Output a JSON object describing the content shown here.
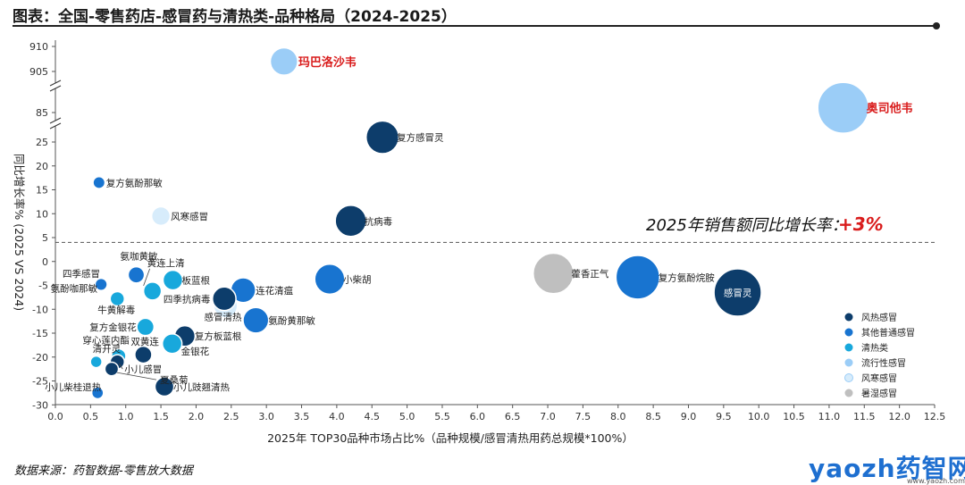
{
  "title": "图表：全国-零售药店-感冒药与清热类-品种格局（2024-2025）",
  "source": "数据来源：药智数据-零售放大数据",
  "logo": {
    "brand": "yaozh药智网",
    "url": "www.yaozh.com"
  },
  "annotation": {
    "text": "2025年销售额同比增长率：",
    "value": "+3%",
    "value_color": "#d91c1c"
  },
  "chart_data": {
    "type": "scatter",
    "bubble": true,
    "xlabel": "2025年 TOP30品种市场占比%（品种规模/感冒清热用药总规模*100%）",
    "ylabel": "同比增长率% (2025 VS 2024)",
    "xlim": [
      0,
      12.5
    ],
    "x_ticks": [
      0.0,
      0.5,
      1.0,
      1.5,
      2.0,
      2.5,
      3.0,
      3.5,
      4.0,
      4.5,
      5.0,
      5.5,
      6.0,
      6.5,
      7.0,
      7.5,
      8.0,
      8.5,
      9.0,
      9.5,
      10.0,
      10.5,
      11.0,
      11.5,
      12.0,
      12.5
    ],
    "x_tick_labels": [
      "0.0",
      "0.5",
      "1.0",
      "1.5",
      "2.0",
      "2.5",
      "3.0",
      "3.5",
      "4.0",
      "4.5",
      "5.0",
      "5.5",
      "6.0",
      "6.5",
      "7.0",
      "7.5",
      "8.0",
      "8.5",
      "9.0",
      "9.5",
      "10.0",
      "10.5",
      "11.0",
      "11.5",
      "12.0",
      "12.5"
    ],
    "y_axis_broken": true,
    "y_tick_labels": [
      "910",
      "905",
      "85",
      "25",
      "20",
      "15",
      "10",
      "5",
      "0",
      "-5",
      "-10",
      "-15",
      "-20",
      "-25",
      "-30"
    ],
    "reference_line": {
      "y": 4,
      "style": "dashed"
    },
    "grid": false,
    "legend_position": "bottom-right",
    "categories": [
      {
        "name": "风热感冒",
        "color": "#0d3d6b"
      },
      {
        "name": "其他普通感冒",
        "color": "#1874d0"
      },
      {
        "name": "清热类",
        "color": "#18a8dc"
      },
      {
        "name": "流行性感冒",
        "color": "#9bcdf7"
      },
      {
        "name": "风寒感冒",
        "color": "#d7ecfb"
      },
      {
        "name": "暑湿感冒",
        "color": "#bfbfbf"
      }
    ],
    "points": [
      {
        "label": "玛巴洛沙韦",
        "x": 3.25,
        "y": 907,
        "size": 3.25,
        "category": "流行性感冒",
        "highlight": true
      },
      {
        "label": "奥司他韦",
        "x": 11.2,
        "y": 86,
        "size": 11.2,
        "category": "流行性感冒",
        "highlight": true
      },
      {
        "label": "复方感冒灵",
        "x": 4.65,
        "y": 26,
        "size": 4.65,
        "category": "风热感冒"
      },
      {
        "label": "复方氨酚那敏",
        "x": 0.62,
        "y": 16.5,
        "size": 0.62,
        "category": "其他普通感冒"
      },
      {
        "label": "风寒感冒",
        "x": 1.5,
        "y": 9.5,
        "size": 1.5,
        "category": "风寒感冒"
      },
      {
        "label": "抗病毒",
        "x": 4.2,
        "y": 8.5,
        "size": 4.2,
        "category": "风热感冒"
      },
      {
        "label": "藿香正气",
        "x": 7.08,
        "y": -2.5,
        "size": 7.08,
        "category": "暑湿感冒"
      },
      {
        "label": "复方氨酚烷胺",
        "x": 8.28,
        "y": -3.3,
        "size": 8.28,
        "category": "其他普通感冒"
      },
      {
        "label": "感冒灵",
        "x": 9.7,
        "y": -6.5,
        "size": 9.7,
        "category": "风热感冒"
      },
      {
        "label": "小柴胡",
        "x": 3.9,
        "y": -3.7,
        "size": 3.9,
        "category": "其他普通感冒"
      },
      {
        "label": "四季感冒",
        "x": 0.66,
        "y": -4.7,
        "size": 0.66,
        "category": "风寒感冒"
      },
      {
        "label": "氨咖黄敏",
        "x": 1.15,
        "y": -2.8,
        "size": 1.15,
        "category": "其他普通感冒"
      },
      {
        "label": "黄连上清",
        "x": 1.38,
        "y": -6.2,
        "size": 1.38,
        "category": "清热类"
      },
      {
        "label": "板蓝根",
        "x": 1.67,
        "y": -3.9,
        "size": 1.67,
        "category": "清热类"
      },
      {
        "label": "连花清瘟",
        "x": 2.67,
        "y": -6.0,
        "size": 2.67,
        "category": "其他普通感冒"
      },
      {
        "label": "四季抗病毒",
        "x": 2.4,
        "y": -7.8,
        "size": 2.4,
        "category": "风热感冒"
      },
      {
        "label": "感冒清热",
        "x": 2.42,
        "y": -9.3,
        "size": 2.42,
        "category": "风寒感冒"
      },
      {
        "label": "氨酚咖那敏",
        "x": 0.65,
        "y": -4.8,
        "size": 0.65,
        "category": "其他普通感冒"
      },
      {
        "label": "牛黄解毒",
        "x": 0.88,
        "y": -7.8,
        "size": 0.88,
        "category": "清热类"
      },
      {
        "label": "氨酚黄那敏",
        "x": 2.85,
        "y": -12.3,
        "size": 2.85,
        "category": "其他普通感冒"
      },
      {
        "label": "复方金银花",
        "x": 1.28,
        "y": -13.7,
        "size": 1.28,
        "category": "清热类"
      },
      {
        "label": "复方板蓝根",
        "x": 1.84,
        "y": -15.6,
        "size": 1.84,
        "category": "风热感冒"
      },
      {
        "label": "穿心莲内酯",
        "x": 0.9,
        "y": -19.8,
        "size": 0.9,
        "category": "清热类"
      },
      {
        "label": "双黄连",
        "x": 1.25,
        "y": -19.5,
        "size": 1.25,
        "category": "风热感冒"
      },
      {
        "label": "金银花",
        "x": 1.66,
        "y": -17.2,
        "size": 1.66,
        "category": "清热类"
      },
      {
        "label": "清开灵",
        "x": 0.58,
        "y": -21.0,
        "size": 0.58,
        "category": "清热类"
      },
      {
        "label": "小儿感冒",
        "x": 0.88,
        "y": -21.0,
        "size": 0.88,
        "category": "风热感冒"
      },
      {
        "label": "夏桑菊",
        "x": 0.8,
        "y": -22.5,
        "size": 0.8,
        "category": "风热感冒"
      },
      {
        "label": "小儿柴桂退热",
        "x": 0.6,
        "y": -27.5,
        "size": 0.6,
        "category": "其他普通感冒"
      },
      {
        "label": "小儿豉翘清热",
        "x": 1.55,
        "y": -26.2,
        "size": 1.55,
        "category": "风热感冒"
      }
    ]
  }
}
